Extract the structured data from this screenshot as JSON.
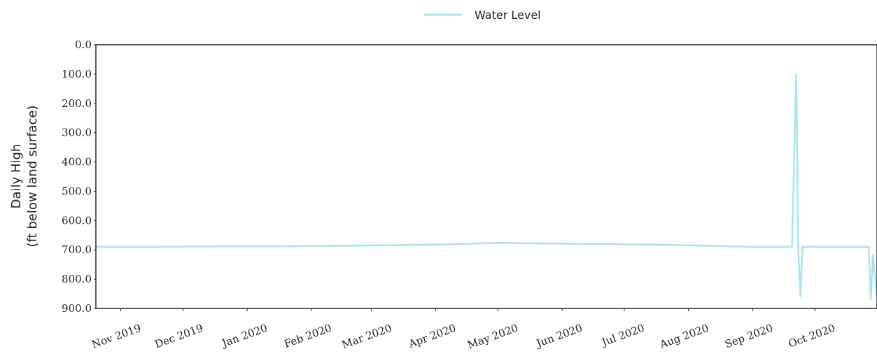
{
  "chart_data": {
    "type": "line",
    "ylabel_line1": "Daily High",
    "ylabel_line2": "(ft below land surface)",
    "ylim": [
      0,
      900
    ],
    "y_inverted": true,
    "y_ticks": [
      "0.0",
      "100.0",
      "200.0",
      "300.0",
      "400.0",
      "500.0",
      "600.0",
      "700.0",
      "800.0",
      "900.0"
    ],
    "xlim": [
      "2019-10-20",
      "2020-10-31"
    ],
    "x_ticks": [
      {
        "date": "2019-11-01",
        "label": "Nov 2019"
      },
      {
        "date": "2019-12-01",
        "label": "Dec 2019"
      },
      {
        "date": "2020-01-01",
        "label": "Jan 2020"
      },
      {
        "date": "2020-02-01",
        "label": "Feb 2020"
      },
      {
        "date": "2020-03-01",
        "label": "Mar 2020"
      },
      {
        "date": "2020-04-01",
        "label": "Apr 2020"
      },
      {
        "date": "2020-05-01",
        "label": "May 2020"
      },
      {
        "date": "2020-06-01",
        "label": "Jun 2020"
      },
      {
        "date": "2020-07-01",
        "label": "Jul 2020"
      },
      {
        "date": "2020-08-01",
        "label": "Aug 2020"
      },
      {
        "date": "2020-09-01",
        "label": "Sep 2020"
      },
      {
        "date": "2020-10-01",
        "label": "Oct 2020"
      }
    ],
    "grid": false,
    "legend_position": "top-center",
    "series": [
      {
        "name": "Water Level",
        "color": "#a8e4f0",
        "points": [
          {
            "x": "2019-10-20",
            "y": 690
          },
          {
            "x": "2019-11-15",
            "y": 690
          },
          {
            "x": "2019-12-15",
            "y": 688
          },
          {
            "x": "2020-01-15",
            "y": 688
          },
          {
            "x": "2020-02-15",
            "y": 686
          },
          {
            "x": "2020-03-15",
            "y": 684
          },
          {
            "x": "2020-04-15",
            "y": 680
          },
          {
            "x": "2020-05-01",
            "y": 676
          },
          {
            "x": "2020-05-20",
            "y": 678
          },
          {
            "x": "2020-06-15",
            "y": 680
          },
          {
            "x": "2020-07-15",
            "y": 682
          },
          {
            "x": "2020-08-10",
            "y": 686
          },
          {
            "x": "2020-09-01",
            "y": 690
          },
          {
            "x": "2020-09-20",
            "y": 690
          },
          {
            "x": "2020-09-22",
            "y": 100
          },
          {
            "x": "2020-09-23",
            "y": 690
          },
          {
            "x": "2020-09-24",
            "y": 860
          },
          {
            "x": "2020-09-25",
            "y": 690
          },
          {
            "x": "2020-10-20",
            "y": 690
          },
          {
            "x": "2020-10-27",
            "y": 690
          },
          {
            "x": "2020-10-28",
            "y": 870
          },
          {
            "x": "2020-10-29",
            "y": 720
          },
          {
            "x": "2020-10-31",
            "y": 860
          }
        ]
      }
    ]
  }
}
